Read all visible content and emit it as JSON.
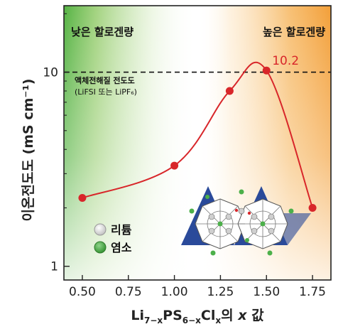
{
  "chart_data": {
    "type": "line",
    "x": [
      0.5,
      1.0,
      1.3,
      1.5,
      1.75
    ],
    "y": [
      2.25,
      3.3,
      8.0,
      10.2,
      2.0
    ],
    "xticks": [
      "0.50",
      "0.75",
      "1.00",
      "1.25",
      "1.50",
      "1.75"
    ],
    "yticks": [
      "1",
      "10"
    ],
    "xlim": [
      0.4,
      1.85
    ],
    "ylim": [
      0.85,
      22
    ],
    "yscale": "log",
    "ylabel": "이온전도도 (mS cm⁻¹)",
    "xlabel_parts": [
      "Li",
      "7−x",
      "PS",
      "6−x",
      "Cl",
      "x",
      "의 ",
      "x",
      " 값"
    ],
    "peak_label": "10.2",
    "reference_line": {
      "y": 10,
      "label_line1": "액체전해질 전도도",
      "label_line2": "(LiFSI 또는 LiPF₆)"
    },
    "region_left": "낮은 할로겐량",
    "region_right": "높은 할로겐량",
    "legend": [
      {
        "label": "리튬",
        "color": "#e6e6e6"
      },
      {
        "label": "염소",
        "color": "#4cb04a"
      }
    ],
    "colors": {
      "line": "#d8262a",
      "marker": "#d8262a",
      "left_bg": "#4caf3a",
      "right_bg": "#f29a2e"
    }
  }
}
